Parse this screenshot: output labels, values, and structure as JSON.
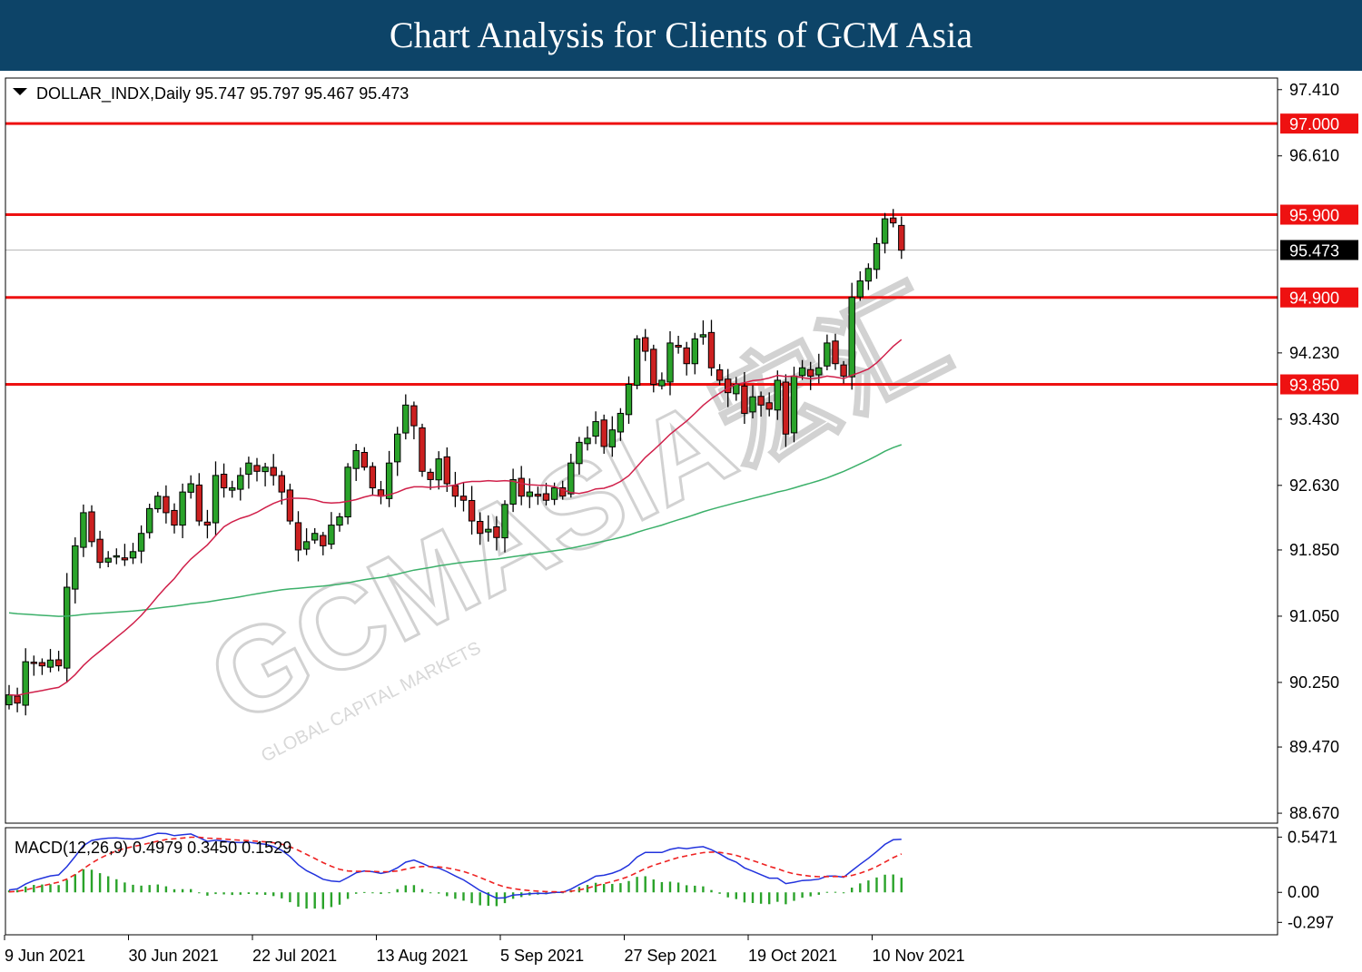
{
  "banner": {
    "title": "Chart Analysis for Clients of GCM Asia"
  },
  "watermark": {
    "brand": "GCMASIA宏汇",
    "tagline": "GLOBAL CAPITAL MARKETS"
  },
  "chart_data": {
    "type": "candlestick",
    "symbol_header": "DOLLAR_INDX,Daily  95.747 95.797 95.467 95.473",
    "price_axis": {
      "range": [
        88.55,
        97.55
      ],
      "ticks": [
        "97.410",
        "96.610",
        "94.230",
        "93.430",
        "92.630",
        "91.850",
        "91.050",
        "90.250",
        "89.470",
        "88.670"
      ],
      "tick_values": [
        97.41,
        96.61,
        94.23,
        93.43,
        92.63,
        91.85,
        91.05,
        90.25,
        89.47,
        88.67
      ]
    },
    "levels": [
      {
        "label": "97.000",
        "value": 97.0
      },
      {
        "label": "95.900",
        "value": 95.9
      },
      {
        "label": "94.900",
        "value": 94.9
      },
      {
        "label": "93.850",
        "value": 93.85
      }
    ],
    "current": {
      "label": "95.473",
      "value": 95.473
    },
    "x_labels": [
      "9 Jun 2021",
      "30 Jun 2021",
      "22 Jul 2021",
      "13 Aug 2021",
      "5 Sep 2021",
      "27 Sep 2021",
      "19 Oct 2021",
      "10 Nov 2021"
    ],
    "x_label_bars": [
      0,
      15,
      30,
      45,
      60,
      75,
      90,
      105
    ],
    "closes": [
      90.1,
      90.0,
      90.5,
      90.48,
      90.45,
      90.52,
      90.45,
      91.4,
      91.9,
      92.3,
      91.95,
      91.7,
      91.75,
      91.78,
      91.73,
      91.83,
      92.05,
      92.35,
      92.5,
      92.3,
      92.15,
      92.55,
      92.65,
      92.2,
      92.15,
      92.75,
      92.6,
      92.6,
      92.75,
      92.9,
      92.8,
      92.85,
      92.75,
      92.55,
      92.2,
      91.85,
      91.95,
      92.05,
      91.9,
      92.15,
      92.25,
      92.85,
      93.05,
      92.85,
      92.6,
      92.5,
      92.9,
      93.25,
      93.6,
      93.35,
      92.8,
      92.7,
      92.95,
      92.65,
      92.5,
      92.45,
      92.2,
      92.05,
      92.1,
      92.0,
      92.4,
      92.7,
      92.5,
      92.55,
      92.5,
      92.45,
      92.6,
      92.5,
      92.9,
      93.15,
      93.2,
      93.4,
      93.1,
      93.3,
      93.5,
      93.85,
      94.4,
      94.25,
      93.85,
      93.9,
      94.35,
      94.3,
      94.1,
      94.4,
      94.45,
      94.05,
      93.9,
      93.75,
      93.85,
      93.5,
      93.7,
      93.6,
      93.55,
      93.9,
      93.25,
      93.95,
      94.05,
      93.95,
      94.05,
      94.35,
      94.1,
      93.95,
      94.9,
      95.1,
      95.25,
      95.55,
      95.85,
      95.8,
      95.47
    ],
    "ma_20_start": 90.1,
    "ma_100_start": 91.1,
    "macd": {
      "label": "MACD(12,26,9) 0.4979 0.3450 0.1529",
      "range": [
        -0.42,
        0.64
      ],
      "ticks": [
        "0.5471",
        "0.00",
        "-0.297"
      ],
      "tick_values": [
        0.5471,
        0.0,
        -0.297
      ]
    }
  }
}
